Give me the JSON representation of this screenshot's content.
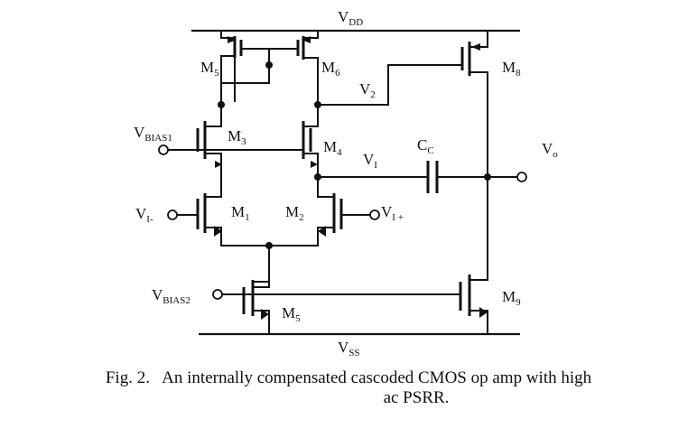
{
  "labels": {
    "vdd": {
      "main": "V",
      "sub": "DD"
    },
    "vss": {
      "main": "V",
      "sub": "SS"
    },
    "vbias1": {
      "main": "V",
      "sub": "BIAS1"
    },
    "vbias2": {
      "main": "V",
      "sub": "BIAS2"
    },
    "vin_minus": {
      "main": "V",
      "sub": "I-"
    },
    "vin_plus": {
      "main": "V",
      "sub": "I +"
    },
    "v1": {
      "main": "V",
      "sub": "I"
    },
    "v2": {
      "main": "V",
      "sub": "2"
    },
    "cc": {
      "main": "C",
      "sub": "C"
    },
    "vo": {
      "main": "V",
      "sub": "o"
    },
    "m1": {
      "main": "M",
      "sub": "1"
    },
    "m2": {
      "main": "M",
      "sub": "2"
    },
    "m3": {
      "main": "M",
      "sub": "3"
    },
    "m4": {
      "main": "M",
      "sub": "4"
    },
    "m5_top": {
      "main": "M",
      "sub": "5"
    },
    "m6": {
      "main": "M",
      "sub": "6"
    },
    "m8": {
      "main": "M",
      "sub": "8"
    },
    "m9": {
      "main": "M",
      "sub": "9"
    },
    "m5_bottom": {
      "main": "M",
      "sub": "5"
    }
  },
  "caption": {
    "prefix": "Fig. 2.",
    "line1": "An internally compensated cascoded CMOS op amp with high",
    "line2": "ac PSRR."
  }
}
